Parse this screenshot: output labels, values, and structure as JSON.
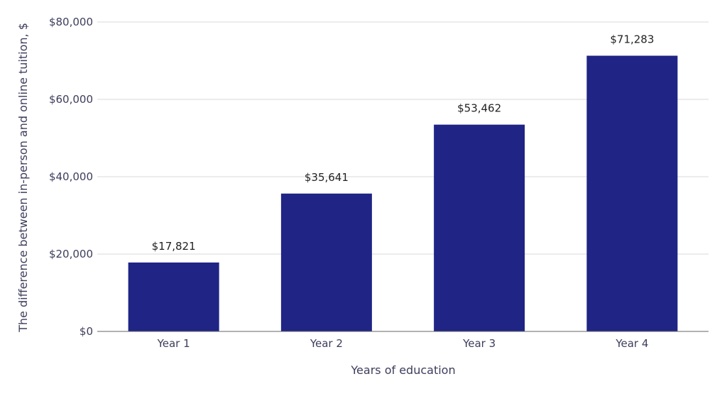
{
  "chart_data": {
    "type": "bar",
    "title": "",
    "xlabel": "Years of education",
    "ylabel": "The difference between in-person and online tuition, $",
    "categories": [
      "Year 1",
      "Year 2",
      "Year 3",
      "Year 4"
    ],
    "values": [
      17821,
      35641,
      53462,
      71283
    ],
    "value_labels": [
      "$17,821",
      "$35,641",
      "$53,462",
      "$71,283"
    ],
    "ylim": [
      0,
      80000
    ],
    "yticks": [
      0,
      20000,
      40000,
      60000,
      80000
    ],
    "ytick_labels": [
      "$0",
      "$20,000",
      "$40,000",
      "$60,000",
      "$80,000"
    ],
    "grid": true,
    "legend": "none",
    "colors": {
      "bar": "#1f2485",
      "grid": "#d9d9d9",
      "axis": "#666666",
      "tick_text": "#3d3d5c",
      "label_text": "#222222"
    }
  }
}
